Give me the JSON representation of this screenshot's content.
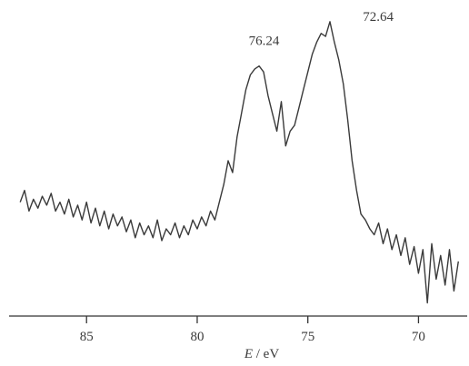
{
  "chart_data": {
    "type": "line",
    "xlabel_italic": "E",
    "xlabel_rest": " / eV",
    "ylabel": "",
    "x_reversed": true,
    "xlim": [
      88.5,
      67.8
    ],
    "ylim": [
      0,
      1
    ],
    "xticks": [
      85,
      80,
      75,
      70
    ],
    "xtick_labels": [
      "85",
      "80",
      "75",
      "70"
    ],
    "annotations": [
      {
        "text": "76.24",
        "x": 76.24,
        "y": 0.83
      },
      {
        "text": "72.64",
        "x": 72.64,
        "y": 0.97
      }
    ],
    "series": [
      {
        "x": [
          88.0,
          87.8,
          87.6,
          87.4,
          87.2,
          87.0,
          86.8,
          86.6,
          86.4,
          86.2,
          86.0,
          85.8,
          85.6,
          85.4,
          85.2,
          85.0,
          84.8,
          84.6,
          84.4,
          84.2,
          84.0,
          83.8,
          83.6,
          83.4,
          83.2,
          83.0,
          82.8,
          82.6,
          82.4,
          82.2,
          82.0,
          81.8,
          81.6,
          81.4,
          81.2,
          81.0,
          80.8,
          80.6,
          80.4,
          80.2,
          80.0,
          79.8,
          79.6,
          79.4,
          79.2,
          79.0,
          78.8,
          78.6,
          78.4,
          78.2,
          78.0,
          77.8,
          77.6,
          77.4,
          77.2,
          77.0,
          76.8,
          76.6,
          76.4,
          76.2,
          76.0,
          75.8,
          75.6,
          75.4,
          75.2,
          75.0,
          74.8,
          74.6,
          74.4,
          74.2,
          74.0,
          73.8,
          73.6,
          73.4,
          73.2,
          73.0,
          72.8,
          72.6,
          72.4,
          72.2,
          72.0,
          71.8,
          71.6,
          71.4,
          71.2,
          71.0,
          70.8,
          70.6,
          70.4,
          70.2,
          70.0,
          69.8,
          69.6,
          69.4,
          69.2,
          69.0,
          68.8,
          68.6,
          68.4,
          68.2
        ],
        "y": [
          0.36,
          0.4,
          0.33,
          0.37,
          0.34,
          0.38,
          0.35,
          0.39,
          0.33,
          0.36,
          0.32,
          0.37,
          0.31,
          0.35,
          0.3,
          0.36,
          0.29,
          0.34,
          0.28,
          0.33,
          0.27,
          0.32,
          0.28,
          0.31,
          0.26,
          0.3,
          0.24,
          0.29,
          0.25,
          0.28,
          0.24,
          0.3,
          0.23,
          0.27,
          0.25,
          0.29,
          0.24,
          0.28,
          0.25,
          0.3,
          0.27,
          0.31,
          0.28,
          0.33,
          0.3,
          0.36,
          0.42,
          0.5,
          0.46,
          0.58,
          0.66,
          0.74,
          0.79,
          0.81,
          0.82,
          0.8,
          0.72,
          0.66,
          0.6,
          0.7,
          0.55,
          0.6,
          0.62,
          0.68,
          0.74,
          0.8,
          0.86,
          0.9,
          0.93,
          0.92,
          0.97,
          0.9,
          0.84,
          0.76,
          0.64,
          0.5,
          0.4,
          0.32,
          0.3,
          0.27,
          0.25,
          0.29,
          0.22,
          0.27,
          0.2,
          0.25,
          0.18,
          0.24,
          0.15,
          0.21,
          0.12,
          0.2,
          0.02,
          0.22,
          0.1,
          0.18,
          0.08,
          0.2,
          0.06,
          0.16
        ]
      }
    ]
  }
}
